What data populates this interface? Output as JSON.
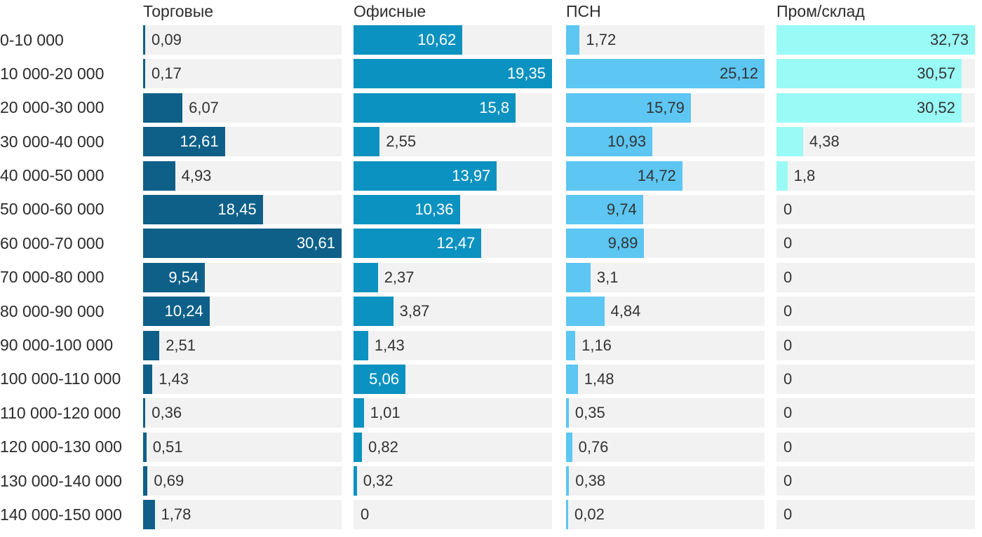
{
  "chart_data": {
    "type": "bar",
    "orientation": "horizontal",
    "title": "",
    "note_scale": "each column scaled independently so its max value fills the full track width",
    "track_color": "#f2f2f2",
    "text_color": "#333333",
    "decimal_separator": ",",
    "categories": [
      "0-10 000",
      "10 000-20 000",
      "20 000-30 000",
      "30 000-40 000",
      "40 000-50 000",
      "50 000-60 000",
      "60 000-70 000",
      "70 000-80 000",
      "80 000-90 000",
      "90 000-100 000",
      "100 000-110 000",
      "110 000-120 000",
      "120 000-130 000",
      "130 000-140 000",
      "140 000-150 000"
    ],
    "series": [
      {
        "name": "Торговые",
        "color": "#0e6089",
        "value_color_inside": "#ffffff",
        "values": [
          0.09,
          0.17,
          6.07,
          12.61,
          4.93,
          18.45,
          30.61,
          9.54,
          10.24,
          2.51,
          1.43,
          0.36,
          0.51,
          0.69,
          1.78
        ]
      },
      {
        "name": "Офисные",
        "color": "#0c92c0",
        "value_color_inside": "#ffffff",
        "values": [
          10.62,
          19.35,
          15.8,
          2.55,
          13.97,
          10.36,
          12.47,
          2.37,
          3.87,
          1.43,
          5.06,
          1.01,
          0.82,
          0.32,
          0
        ]
      },
      {
        "name": "ПСН",
        "color": "#5dc6f2",
        "value_color_inside": "#333333",
        "values": [
          1.72,
          25.12,
          15.79,
          10.93,
          14.72,
          9.74,
          9.89,
          3.1,
          4.84,
          1.16,
          1.48,
          0.35,
          0.76,
          0.38,
          0.02
        ]
      },
      {
        "name": "Пром/склад",
        "color": "#9afaf6",
        "value_color_inside": "#333333",
        "values": [
          32.73,
          30.57,
          30.52,
          4.38,
          1.8,
          0,
          0,
          0,
          0,
          0,
          0,
          0,
          0,
          0,
          0
        ]
      }
    ]
  }
}
